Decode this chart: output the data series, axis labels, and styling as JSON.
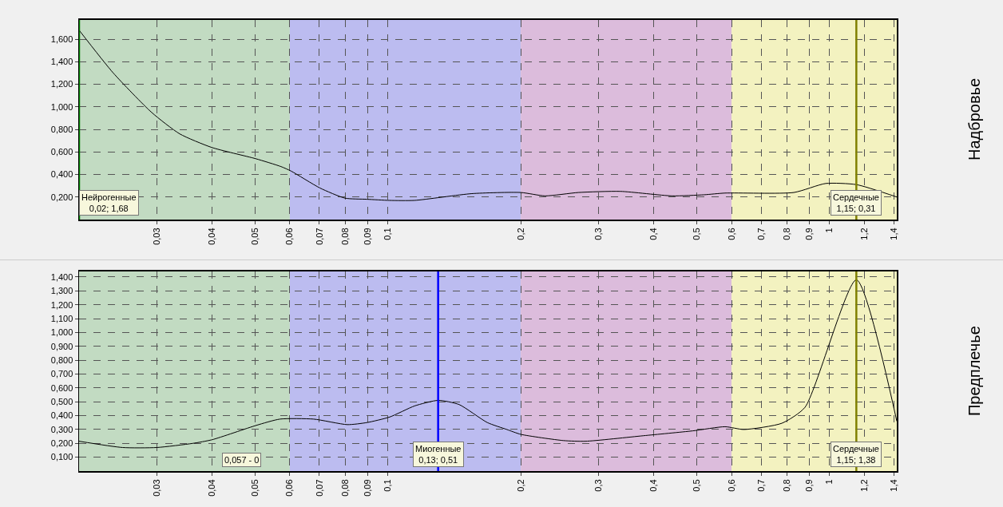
{
  "chart_data": [
    {
      "type": "line",
      "ylabel": "Надбровье",
      "log": "x",
      "grid": true,
      "line_style": "solid",
      "xlim": [
        0.02,
        1.42
      ],
      "xticks": [
        {
          "value": 0.03,
          "label": "0,03"
        },
        {
          "value": 0.04,
          "label": "0,04"
        },
        {
          "value": 0.05,
          "label": "0,05"
        },
        {
          "value": 0.06,
          "label": "0,06"
        },
        {
          "value": 0.07,
          "label": "0,07"
        },
        {
          "value": 0.08,
          "label": "0,08"
        },
        {
          "value": 0.09,
          "label": "0,09"
        },
        {
          "value": 0.1,
          "label": "0,1"
        },
        {
          "value": 0.2,
          "label": "0,2"
        },
        {
          "value": 0.3,
          "label": "0,3"
        },
        {
          "value": 0.4,
          "label": "0,4"
        },
        {
          "value": 0.5,
          "label": "0,5"
        },
        {
          "value": 0.6,
          "label": "0,6"
        },
        {
          "value": 0.7,
          "label": "0,7"
        },
        {
          "value": 0.8,
          "label": "0,8"
        },
        {
          "value": 0.9,
          "label": "0,9"
        },
        1,
        {
          "value": 1.2,
          "label": "1,2"
        },
        {
          "value": 1.4,
          "label": "1,4"
        }
      ],
      "ylim": [
        0,
        1.77
      ],
      "yticks": [
        {
          "value": 0.2,
          "label": "0,200"
        },
        {
          "value": 0.4,
          "label": "0,400"
        },
        {
          "value": 0.6,
          "label": "0,600"
        },
        {
          "value": 0.8,
          "label": "0,800"
        },
        {
          "value": 1.0,
          "label": "1,000"
        },
        {
          "value": 1.2,
          "label": "1,200"
        },
        {
          "value": 1.4,
          "label": "1,400"
        },
        {
          "value": 1.6,
          "label": "1,600"
        }
      ],
      "x": [
        0.02,
        0.0239,
        0.0292,
        0.0338,
        0.0399,
        0.0502,
        0.0573,
        0.0604,
        0.0702,
        0.08,
        0.0897,
        0.1009,
        0.115,
        0.155,
        0.2,
        0.227,
        0.27,
        0.336,
        0.44,
        0.52,
        0.58,
        0.83,
        0.98,
        1.15,
        1.42
      ],
      "series": [
        {
          "color": "#000000",
          "values": [
            1.68,
            1.3,
            0.95,
            0.76,
            0.64,
            0.54,
            0.47,
            0.43,
            0.28,
            0.19,
            0.18,
            0.17,
            0.17,
            0.23,
            0.24,
            0.21,
            0.24,
            0.25,
            0.21,
            0.22,
            0.235,
            0.24,
            0.32,
            0.31,
            0.2
          ]
        }
      ],
      "bands": [
        {
          "axis": "x",
          "from": 0.02,
          "to": 0.06,
          "color": "#c2dbc2"
        },
        {
          "axis": "x",
          "from": 0.06,
          "to": 0.2,
          "color": "#bcbcf0"
        },
        {
          "axis": "x",
          "from": 0.2,
          "to": 0.6,
          "color": "#dcbcdc"
        },
        {
          "axis": "x",
          "from": 0.6,
          "to": 1.42,
          "color": "#f3f2c0"
        }
      ],
      "ref_lines": [
        {
          "axis": "x",
          "value": 0.02,
          "color": "#008000"
        },
        {
          "axis": "x",
          "value": 1.15,
          "color": "#808000"
        }
      ],
      "annotations": [
        {
          "text": "Нейрогенные\n0,02; 1,68",
          "x": 0.02
        },
        {
          "text": "Сердечные\n1,15; 0,31",
          "x": 1.15
        }
      ]
    },
    {
      "type": "line",
      "ylabel": "Предплечье",
      "log": "x",
      "grid": true,
      "line_style": "solid",
      "xlim": [
        0.02,
        1.42
      ],
      "xticks": [
        {
          "value": 0.03,
          "label": "0,03"
        },
        {
          "value": 0.04,
          "label": "0,04"
        },
        {
          "value": 0.05,
          "label": "0,05"
        },
        {
          "value": 0.06,
          "label": "0,06"
        },
        {
          "value": 0.07,
          "label": "0,07"
        },
        {
          "value": 0.08,
          "label": "0,08"
        },
        {
          "value": 0.09,
          "label": "0,09"
        },
        {
          "value": 0.1,
          "label": "0,1"
        },
        {
          "value": 0.2,
          "label": "0,2"
        },
        {
          "value": 0.3,
          "label": "0,3"
        },
        {
          "value": 0.4,
          "label": "0,4"
        },
        {
          "value": 0.5,
          "label": "0,5"
        },
        {
          "value": 0.6,
          "label": "0,6"
        },
        {
          "value": 0.7,
          "label": "0,7"
        },
        {
          "value": 0.8,
          "label": "0,8"
        },
        {
          "value": 0.9,
          "label": "0,9"
        },
        1,
        {
          "value": 1.2,
          "label": "1,2"
        },
        {
          "value": 1.4,
          "label": "1,4"
        }
      ],
      "ylim": [
        0,
        1.44
      ],
      "yticks": [
        {
          "value": 0.1,
          "label": "0,100"
        },
        {
          "value": 0.2,
          "label": "0,200"
        },
        {
          "value": 0.3,
          "label": "0,300"
        },
        {
          "value": 0.4,
          "label": "0,400"
        },
        {
          "value": 0.5,
          "label": "0,500"
        },
        {
          "value": 0.6,
          "label": "0,600"
        },
        {
          "value": 0.7,
          "label": "0,700"
        },
        {
          "value": 0.8,
          "label": "0,800"
        },
        {
          "value": 0.9,
          "label": "0,900"
        },
        {
          "value": 1.0,
          "label": "1,000"
        },
        {
          "value": 1.1,
          "label": "1,100"
        },
        {
          "value": 1.2,
          "label": "1,200"
        },
        {
          "value": 1.3,
          "label": "1,300"
        },
        {
          "value": 1.4,
          "label": "1,400"
        }
      ],
      "x": [
        0.02,
        0.0251,
        0.03,
        0.0362,
        0.04,
        0.0504,
        0.057,
        0.0679,
        0.081,
        0.0897,
        0.101,
        0.115,
        0.13,
        0.145,
        0.168,
        0.186,
        0.2,
        0.25,
        0.28,
        0.379,
        0.49,
        0.58,
        0.64,
        0.78,
        0.88,
        1.15,
        1.42
      ],
      "series": [
        {
          "color": "#000000",
          "values": [
            0.215,
            0.17,
            0.17,
            0.2,
            0.226,
            0.33,
            0.375,
            0.375,
            0.335,
            0.35,
            0.39,
            0.47,
            0.51,
            0.48,
            0.35,
            0.3,
            0.265,
            0.22,
            0.215,
            0.255,
            0.29,
            0.32,
            0.3,
            0.345,
            0.46,
            1.38,
            0.36
          ]
        }
      ],
      "bands": [
        {
          "axis": "x",
          "from": 0.02,
          "to": 0.06,
          "color": "#c2dbc2"
        },
        {
          "axis": "x",
          "from": 0.06,
          "to": 0.2,
          "color": "#bcbcf0"
        },
        {
          "axis": "x",
          "from": 0.2,
          "to": 0.6,
          "color": "#dcbcdc"
        },
        {
          "axis": "x",
          "from": 0.6,
          "to": 1.42,
          "color": "#f3f2c0"
        }
      ],
      "ref_lines": [
        {
          "axis": "x",
          "value": 0.13,
          "color": "#0000ff"
        },
        {
          "axis": "x",
          "value": 1.15,
          "color": "#808000"
        }
      ],
      "annotations": [
        "0,057 - 0",
        {
          "text": "Миогенные\n0,13; 0,51",
          "x": 0.13
        },
        {
          "text": "Сердечные\n1,15; 1,38",
          "x": 1.15
        }
      ]
    }
  ]
}
